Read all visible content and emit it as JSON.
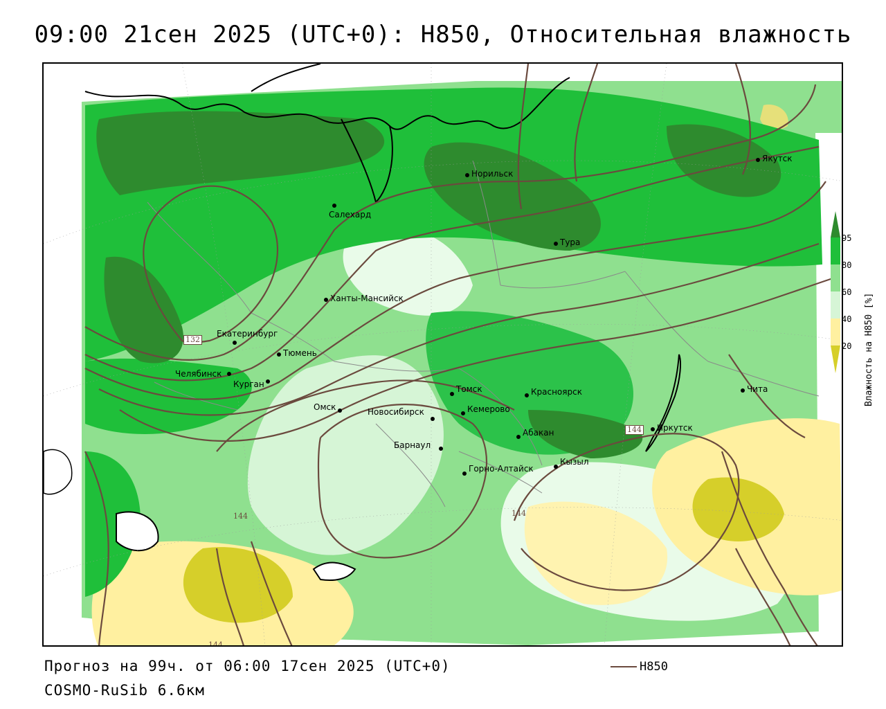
{
  "title": "09:00 21сен 2025 (UTC+0): H850, Относительная влажность",
  "footer": {
    "forecast": "Прогноз на 99ч. от 06:00 17сен 2025 (UTC+0)",
    "model": "COSMO-RuSib 6.6км"
  },
  "line_legend": {
    "label": "H850",
    "color": "#6b4a3e"
  },
  "colorbar": {
    "axis_label": "Влажность на H850 [%]",
    "ticks": [
      "95",
      "80",
      "60",
      "40",
      "20"
    ],
    "colors": {
      "gt95": "#2e8b2e",
      "80_95": "#1fbf3a",
      "60_80": "#8fe08f",
      "50_60": "#d6f5d6",
      "40_50": "#ffffff",
      "20_40": "#fff0a0",
      "lt20": "#d6cf2a"
    }
  },
  "contour_labels": [
    "132",
    "144",
    "144",
    "144",
    "144"
  ],
  "cities": [
    {
      "name": "Норильск"
    },
    {
      "name": "Якутск"
    },
    {
      "name": "Салехард"
    },
    {
      "name": "Тура"
    },
    {
      "name": "Ханты-Мансийск"
    },
    {
      "name": "Екатеринбург"
    },
    {
      "name": "Тюмень"
    },
    {
      "name": "Челябинск"
    },
    {
      "name": "Курган"
    },
    {
      "name": "Омск"
    },
    {
      "name": "Новосибирск"
    },
    {
      "name": "Томск"
    },
    {
      "name": "Кемерово"
    },
    {
      "name": "Красноярск"
    },
    {
      "name": "Барнаул"
    },
    {
      "name": "Абакан"
    },
    {
      "name": "Горно-Алтайск"
    },
    {
      "name": "Кызыл"
    },
    {
      "name": "Иркутск"
    },
    {
      "name": "Чита"
    }
  ]
}
